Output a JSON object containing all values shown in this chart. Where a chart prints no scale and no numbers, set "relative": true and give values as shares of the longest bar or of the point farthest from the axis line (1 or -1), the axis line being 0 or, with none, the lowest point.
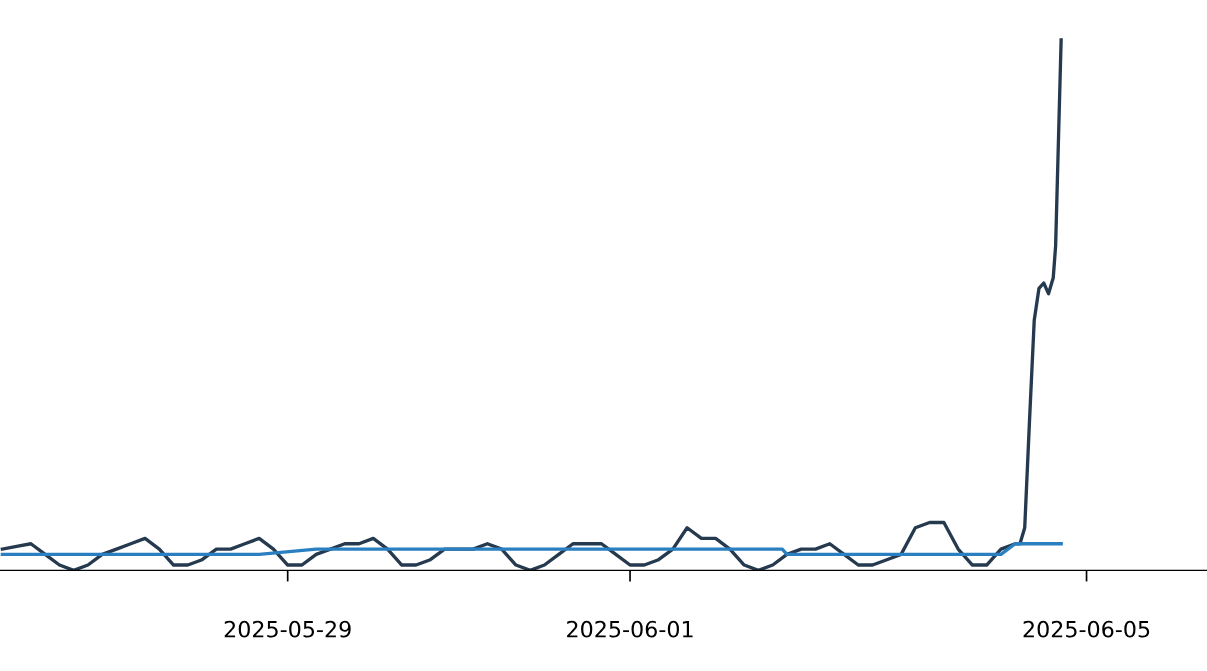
{
  "chart_data": {
    "type": "line",
    "relative": true,
    "xlim": [
      "2025-05-26T11:30",
      "2025-06-06T01:20"
    ],
    "xticks": [
      {
        "value": "2025-05-29",
        "label": "2025-05-29"
      },
      {
        "value": "2025-06-01",
        "label": "2025-06-01"
      },
      {
        "value": "2025-06-05",
        "label": "2025-06-05"
      }
    ],
    "tick_labels": "x",
    "grid": false,
    "legend": false,
    "series": [
      {
        "color": "#253a4f",
        "x": [
          "2025-05-26T12:00",
          "2025-05-26T15:00",
          "2025-05-26T18:00",
          "2025-05-26T21:00",
          "2025-05-27T00:00",
          "2025-05-27T03:00",
          "2025-05-27T06:00",
          "2025-05-27T09:00",
          "2025-05-27T12:00",
          "2025-05-27T15:00",
          "2025-05-27T18:00",
          "2025-05-27T21:00",
          "2025-05-28T00:00",
          "2025-05-28T03:00",
          "2025-05-28T06:00",
          "2025-05-28T09:00",
          "2025-05-28T12:00",
          "2025-05-28T15:00",
          "2025-05-28T18:00",
          "2025-05-28T21:00",
          "2025-05-29T00:00",
          "2025-05-29T03:00",
          "2025-05-29T06:00",
          "2025-05-29T09:00",
          "2025-05-29T12:00",
          "2025-05-29T15:00",
          "2025-05-29T18:00",
          "2025-05-29T21:00",
          "2025-05-30T00:00",
          "2025-05-30T03:00",
          "2025-05-30T06:00",
          "2025-05-30T09:00",
          "2025-05-30T12:00",
          "2025-05-30T15:00",
          "2025-05-30T18:00",
          "2025-05-30T21:00",
          "2025-05-31T00:00",
          "2025-05-31T03:00",
          "2025-05-31T06:00",
          "2025-05-31T09:00",
          "2025-05-31T12:00",
          "2025-05-31T15:00",
          "2025-05-31T18:00",
          "2025-05-31T21:00",
          "2025-06-01T00:00",
          "2025-06-01T03:00",
          "2025-06-01T06:00",
          "2025-06-01T09:00",
          "2025-06-01T12:00",
          "2025-06-01T15:00",
          "2025-06-01T18:00",
          "2025-06-01T21:00",
          "2025-06-02T00:00",
          "2025-06-02T03:00",
          "2025-06-02T06:00",
          "2025-06-02T09:00",
          "2025-06-02T12:00",
          "2025-06-02T15:00",
          "2025-06-02T18:00",
          "2025-06-02T21:00",
          "2025-06-03T00:00",
          "2025-06-03T03:00",
          "2025-06-03T06:00",
          "2025-06-03T09:00",
          "2025-06-03T12:00",
          "2025-06-03T15:00",
          "2025-06-03T18:00",
          "2025-06-03T21:00",
          "2025-06-04T00:00",
          "2025-06-04T03:00",
          "2025-06-04T06:00",
          "2025-06-04T09:00",
          "2025-06-04T10:00",
          "2025-06-04T11:00",
          "2025-06-04T12:00",
          "2025-06-04T13:00",
          "2025-06-04T14:00",
          "2025-06-04T15:00",
          "2025-06-04T16:00",
          "2025-06-04T17:00",
          "2025-06-04T17:30",
          "2025-06-04T18:40"
        ],
        "values": [
          0.04,
          0.045,
          0.05,
          0.03,
          0.01,
          0.0,
          0.01,
          0.03,
          0.04,
          0.05,
          0.06,
          0.04,
          0.01,
          0.01,
          0.02,
          0.04,
          0.04,
          0.05,
          0.06,
          0.04,
          0.01,
          0.01,
          0.03,
          0.04,
          0.05,
          0.05,
          0.06,
          0.04,
          0.01,
          0.01,
          0.02,
          0.04,
          0.04,
          0.04,
          0.05,
          0.04,
          0.01,
          0.0,
          0.01,
          0.03,
          0.05,
          0.05,
          0.05,
          0.03,
          0.01,
          0.01,
          0.02,
          0.04,
          0.08,
          0.06,
          0.06,
          0.04,
          0.01,
          0.0,
          0.01,
          0.03,
          0.04,
          0.04,
          0.05,
          0.03,
          0.01,
          0.01,
          0.02,
          0.03,
          0.08,
          0.09,
          0.09,
          0.04,
          0.01,
          0.01,
          0.04,
          0.05,
          0.05,
          0.08,
          0.28,
          0.47,
          0.53,
          0.54,
          0.52,
          0.55,
          0.61,
          1.0
        ]
      },
      {
        "color": "#2a7fc1",
        "x": [
          "2025-05-26T12:00",
          "2025-05-28T18:00",
          "2025-05-29T06:00",
          "2025-06-02T08:00",
          "2025-06-02T09:00",
          "2025-06-04T06:00",
          "2025-06-04T09:00",
          "2025-06-04T18:40"
        ],
        "values": [
          0.03,
          0.03,
          0.04,
          0.04,
          0.03,
          0.03,
          0.05,
          0.05
        ]
      }
    ]
  }
}
